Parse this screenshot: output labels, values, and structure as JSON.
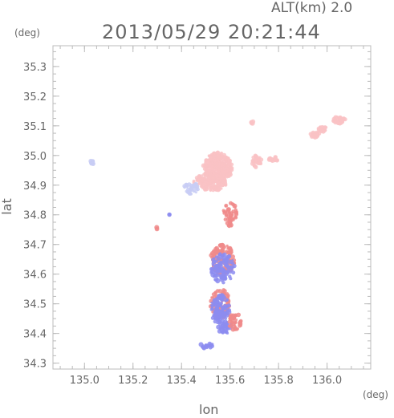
{
  "header": {
    "alt_label": "ALT(km) 2.0",
    "timestamp": "2013/05/29 20:21:44"
  },
  "chart_data": {
    "type": "scatter",
    "title": "2013/05/29 20:21:44",
    "xlabel": "lon",
    "ylabel": "lat",
    "x_unit": "(deg)",
    "y_unit": "(deg)",
    "xlim": [
      134.87,
      136.18
    ],
    "ylim": [
      34.28,
      35.37
    ],
    "x_ticks": [
      135.0,
      135.2,
      135.4,
      135.6,
      135.8,
      136.0
    ],
    "x_tick_labels": [
      "135.0",
      "135.2",
      "135.4",
      "135.6",
      "135.8",
      "136.0"
    ],
    "y_ticks": [
      34.3,
      34.4,
      34.5,
      34.6,
      34.7,
      34.8,
      34.9,
      35.0,
      35.1,
      35.2,
      35.3
    ],
    "y_tick_labels": [
      "34.3",
      "34.4",
      "34.5",
      "34.6",
      "34.7",
      "34.8",
      "34.9",
      "35.0",
      "35.1",
      "35.2",
      "35.3"
    ],
    "grid": false,
    "colors": {
      "positive": "#f08a8a",
      "negative": "#8c8cf0",
      "light_positive": "#f9c2c4",
      "light_negative": "#c8ccf4"
    },
    "clusters": [
      {
        "lon": 135.55,
        "lat": 34.96,
        "rlon": 0.06,
        "rlat": 0.05,
        "n": 340,
        "shade": "light_positive"
      },
      {
        "lon": 135.52,
        "lat": 34.91,
        "rlon": 0.07,
        "rlat": 0.03,
        "n": 180,
        "shade": "light_positive"
      },
      {
        "lon": 135.44,
        "lat": 34.89,
        "rlon": 0.03,
        "rlat": 0.02,
        "n": 40,
        "shade": "light_negative"
      },
      {
        "lon": 135.71,
        "lat": 34.98,
        "rlon": 0.02,
        "rlat": 0.02,
        "n": 40,
        "shade": "light_positive"
      },
      {
        "lon": 135.78,
        "lat": 34.99,
        "rlon": 0.02,
        "rlat": 0.01,
        "n": 20,
        "shade": "light_positive"
      },
      {
        "lon": 135.95,
        "lat": 35.07,
        "rlon": 0.02,
        "rlat": 0.01,
        "n": 30,
        "shade": "light_positive"
      },
      {
        "lon": 135.98,
        "lat": 35.09,
        "rlon": 0.02,
        "rlat": 0.01,
        "n": 25,
        "shade": "light_positive"
      },
      {
        "lon": 136.05,
        "lat": 35.12,
        "rlon": 0.025,
        "rlat": 0.012,
        "n": 40,
        "shade": "light_positive"
      },
      {
        "lon": 135.69,
        "lat": 35.11,
        "rlon": 0.008,
        "rlat": 0.005,
        "n": 8,
        "shade": "light_positive"
      },
      {
        "lon": 135.03,
        "lat": 34.975,
        "rlon": 0.006,
        "rlat": 0.01,
        "n": 10,
        "shade": "light_negative"
      },
      {
        "lon": 135.6,
        "lat": 34.8,
        "rlon": 0.03,
        "rlat": 0.04,
        "n": 50,
        "shade": "positive"
      },
      {
        "lon": 135.57,
        "lat": 34.65,
        "rlon": 0.05,
        "rlat": 0.05,
        "n": 160,
        "shade": "positive"
      },
      {
        "lon": 135.57,
        "lat": 34.62,
        "rlon": 0.05,
        "rlat": 0.05,
        "n": 120,
        "shade": "negative"
      },
      {
        "lon": 135.56,
        "lat": 34.5,
        "rlon": 0.04,
        "rlat": 0.05,
        "n": 100,
        "shade": "positive"
      },
      {
        "lon": 135.56,
        "lat": 34.48,
        "rlon": 0.04,
        "rlat": 0.05,
        "n": 100,
        "shade": "negative"
      },
      {
        "lon": 135.58,
        "lat": 34.42,
        "rlon": 0.03,
        "rlat": 0.02,
        "n": 40,
        "shade": "negative"
      },
      {
        "lon": 135.5,
        "lat": 34.36,
        "rlon": 0.03,
        "rlat": 0.01,
        "n": 20,
        "shade": "negative"
      },
      {
        "lon": 135.62,
        "lat": 34.44,
        "rlon": 0.03,
        "rlat": 0.03,
        "n": 40,
        "shade": "positive"
      },
      {
        "lon": 135.35,
        "lat": 34.8,
        "rlon": 0.004,
        "rlat": 0.004,
        "n": 4,
        "shade": "negative"
      },
      {
        "lon": 135.3,
        "lat": 34.755,
        "rlon": 0.004,
        "rlat": 0.004,
        "n": 3,
        "shade": "positive"
      }
    ]
  }
}
